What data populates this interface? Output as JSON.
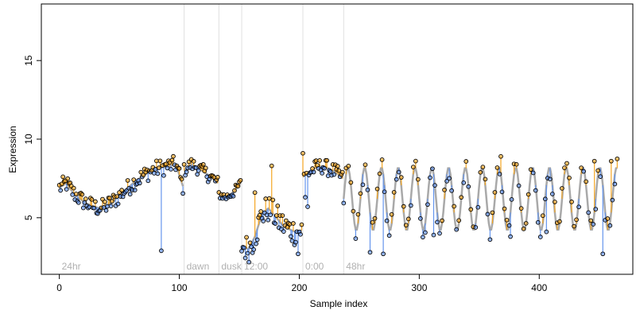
{
  "chart_data": {
    "type": "scatter",
    "title": "",
    "xlabel": "Sample index",
    "ylabel": "Expression",
    "xlim": [
      -15,
      478
    ],
    "ylim": [
      1.4,
      18.6
    ],
    "xticks": [
      0,
      100,
      200,
      300,
      400
    ],
    "yticks": [
      5,
      10,
      15
    ],
    "grid": false,
    "legend": "none",
    "colors": {
      "fitted_line": "#a9a9a9",
      "residual_positive": "#f5a623",
      "residual_negative": "#6495ed",
      "point_stroke": "#000000",
      "marker_line": "#e0e0e0",
      "marker_text": "#b0b0b0",
      "axis": "#000000"
    },
    "markers": [
      {
        "x": 0,
        "label": "24hr"
      },
      {
        "x": 104,
        "label": "dawn"
      },
      {
        "x": 133,
        "label": "dusk"
      },
      {
        "x": 152,
        "label": "12:00"
      },
      {
        "x": 203,
        "label": "0:00"
      },
      {
        "x": 237,
        "label": "48hr"
      }
    ],
    "segments": [
      {
        "x_start": 0,
        "x_end": 103,
        "fitted": [
          6.9,
          7.2,
          6.6,
          6.2,
          5.9,
          5.7,
          5.6,
          5.8,
          6.1,
          6.5,
          6.9,
          7.3,
          7.6,
          7.9,
          8.1,
          8.2,
          8.3,
          8.4,
          7.0
        ],
        "scatter": 0.55,
        "outliers": [
          {
            "i": 85,
            "y": 2.9
          }
        ]
      },
      {
        "x_start": 104,
        "x_end": 132,
        "fitted": [
          8.0,
          8.4,
          8.2,
          7.9,
          7.6,
          7.2
        ],
        "scatter": 0.45,
        "outliers": []
      },
      {
        "x_start": 133,
        "x_end": 151,
        "fitted": [
          6.5,
          6.3,
          6.6,
          7.2
        ],
        "scatter": 0.3,
        "outliers": []
      },
      {
        "x_start": 152,
        "x_end": 202,
        "fitted": [
          3.2,
          3.0,
          3.8,
          5.2,
          5.6,
          5.1,
          4.6,
          4.3,
          4.1,
          4.2
        ],
        "scatter": 0.9,
        "outliers": [
          {
            "i": 163,
            "y": 6.6
          },
          {
            "i": 177,
            "y": 8.3
          },
          {
            "i": 199,
            "y": 2.7
          }
        ]
      },
      {
        "x_start": 203,
        "x_end": 236,
        "fitted": [
          7.6,
          7.9,
          8.2,
          8.3,
          8.1,
          7.9,
          7.5
        ],
        "scatter": 0.5,
        "outliers": [
          {
            "i": 203,
            "y": 9.1
          },
          {
            "i": 205,
            "y": 6.3
          },
          {
            "i": 207,
            "y": 5.7
          }
        ]
      },
      {
        "x_start": 237,
        "x_end": 465,
        "osc": {
          "mean": 6.2,
          "amp": 2.0,
          "period": 14,
          "trend": 0.0
        },
        "scatter": 0.7,
        "outliers": [
          {
            "i": 259,
            "y": 2.8
          },
          {
            "i": 270,
            "y": 2.7
          },
          {
            "i": 312,
            "y": 3.9
          },
          {
            "i": 376,
            "y": 3.8
          },
          {
            "i": 406,
            "y": 4.1
          },
          {
            "i": 453,
            "y": 2.7
          },
          {
            "i": 460,
            "y": 8.6
          },
          {
            "i": 368,
            "y": 8.9
          },
          {
            "i": 446,
            "y": 8.6
          }
        ]
      }
    ]
  }
}
